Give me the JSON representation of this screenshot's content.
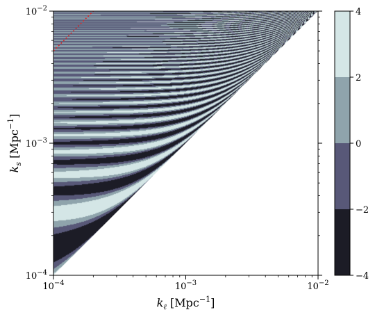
{
  "chart_data": {
    "type": "heatmap",
    "x_scale": "log",
    "y_scale": "log",
    "xlim": [
      0.0001,
      0.01
    ],
    "ylim": [
      0.0001,
      0.01
    ],
    "xlabel": {
      "sym": "k",
      "sub": "ℓ",
      "unit": " [Mpc",
      "exp": "−1",
      "close": "]"
    },
    "ylabel": {
      "sym": "k",
      "sub": "s",
      "unit": " [Mpc",
      "exp": "−1",
      "close": "]"
    },
    "x_ticks": [
      {
        "value": 0.0001,
        "base": "10",
        "exp": "−4"
      },
      {
        "value": 0.001,
        "base": "10",
        "exp": "−3"
      },
      {
        "value": 0.01,
        "base": "10",
        "exp": "−2"
      }
    ],
    "y_ticks": [
      {
        "value": 0.0001,
        "base": "10",
        "exp": "−4"
      },
      {
        "value": 0.001,
        "base": "10",
        "exp": "−3"
      },
      {
        "value": 0.01,
        "base": "10",
        "exp": "−2"
      }
    ],
    "domain": "k_s >= k_l (upper-left triangle filled, lower-right blank)",
    "colorbar": {
      "levels": [
        -4,
        -2,
        0,
        2,
        4
      ],
      "tick_labels": [
        "−4",
        "−2",
        "0",
        "2",
        "4"
      ],
      "band_colors": [
        "#1c1c26",
        "#585878",
        "#8fa4ac",
        "#d4e6e6"
      ]
    },
    "reference_line": {
      "color": "#d62728",
      "style": "dotted",
      "points": [
        [
          0.0001,
          0.005
        ],
        [
          0.0002,
          0.01
        ]
      ]
    }
  }
}
